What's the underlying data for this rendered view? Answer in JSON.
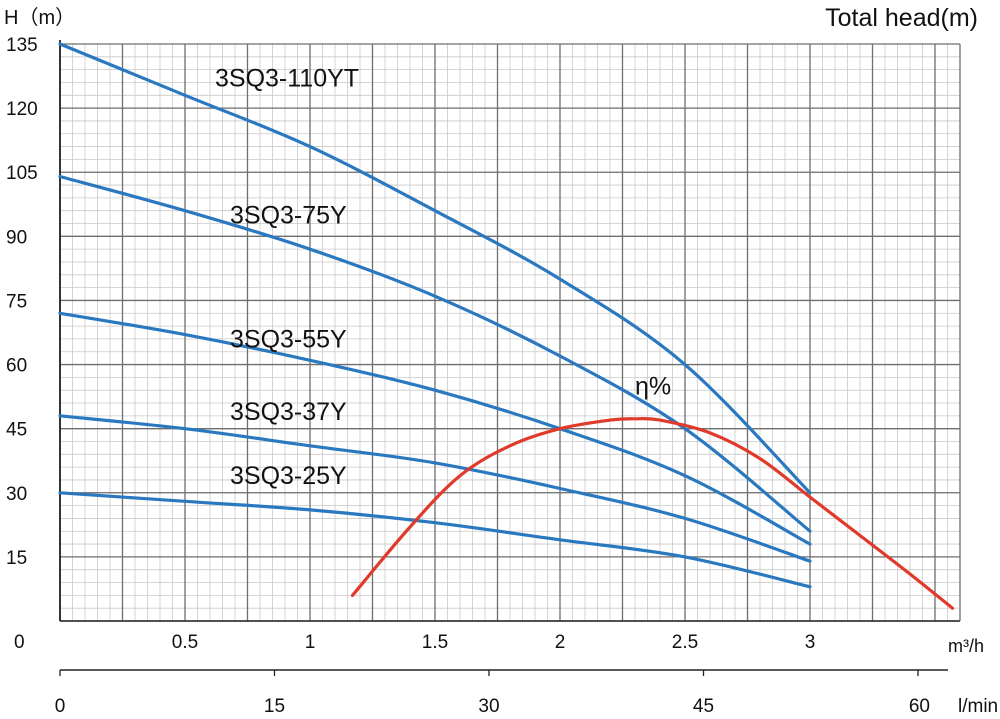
{
  "chart_data": {
    "type": "line",
    "title": "Total head(m)",
    "ylabel": "H（m）",
    "xlabel_primary": "m³/h",
    "xlabel_secondary": "l/min",
    "xlim": [
      0,
      3.6
    ],
    "ylim": [
      0,
      135
    ],
    "grid": true,
    "y_ticks": [
      0,
      15,
      30,
      45,
      60,
      75,
      90,
      105,
      120,
      135
    ],
    "x_ticks": [
      0,
      0.5,
      1,
      1.5,
      2,
      2.5,
      3
    ],
    "x_tick_labels": [
      "0",
      "0.5",
      "1",
      "1.5",
      "2",
      "2.5",
      "3"
    ],
    "x2_ticks": [
      0,
      15,
      30,
      45,
      60
    ],
    "x2_tick_labels": [
      "0",
      "15",
      "30",
      "45",
      "60"
    ],
    "series": [
      {
        "name": "3SQ3-110YT",
        "color": "#2a78c0",
        "x": [
          0,
          0.5,
          1,
          1.5,
          2,
          2.5,
          3
        ],
        "y": [
          135,
          123,
          111,
          96,
          80,
          60,
          30
        ],
        "label_at": [
          0.62,
          125
        ]
      },
      {
        "name": "3SQ3-75Y",
        "color": "#2a78c0",
        "x": [
          0,
          0.5,
          1,
          1.5,
          2,
          2.5,
          3
        ],
        "y": [
          104,
          96,
          87,
          76,
          62,
          45,
          21
        ],
        "label_at": [
          0.68,
          93
        ]
      },
      {
        "name": "3SQ3-55Y",
        "color": "#2a78c0",
        "x": [
          0,
          0.5,
          1,
          1.5,
          2,
          2.5,
          3
        ],
        "y": [
          72,
          67,
          61,
          54,
          45,
          34,
          18
        ],
        "label_at": [
          0.68,
          64
        ]
      },
      {
        "name": "3SQ3-37Y",
        "color": "#2a78c0",
        "x": [
          0,
          0.5,
          1,
          1.5,
          2,
          2.5,
          3
        ],
        "y": [
          48,
          45,
          41,
          37,
          31,
          24,
          14
        ],
        "label_at": [
          0.68,
          47
        ]
      },
      {
        "name": "3SQ3-25Y",
        "color": "#2a78c0",
        "x": [
          0,
          0.5,
          1,
          1.5,
          2,
          2.5,
          3
        ],
        "y": [
          30,
          28,
          26,
          23,
          19,
          15,
          8
        ],
        "label_at": [
          0.68,
          32
        ]
      },
      {
        "name": "η%",
        "color": "#e03a2a",
        "x": [
          1.17,
          1.4,
          1.6,
          1.8,
          2.0,
          2.2,
          2.3,
          2.4,
          2.6,
          2.8,
          3.0,
          3.2,
          3.4,
          3.57
        ],
        "y": [
          6,
          22,
          34,
          41,
          45,
          47,
          47.3,
          47,
          44,
          38,
          29,
          20,
          11,
          3
        ],
        "label_at": [
          2.3,
          53
        ]
      }
    ]
  }
}
